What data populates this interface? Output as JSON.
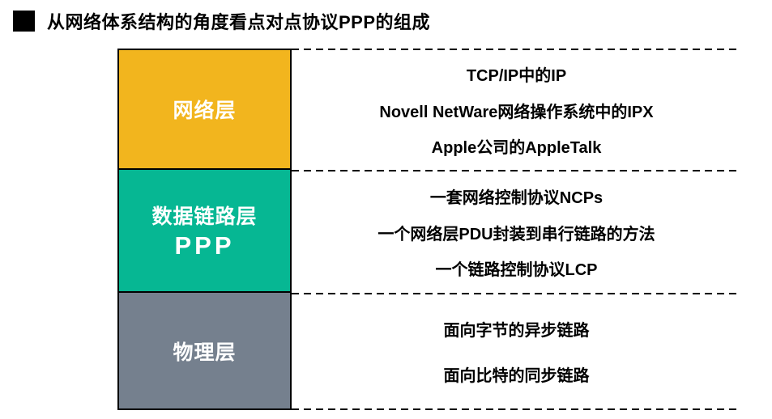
{
  "header": {
    "bullet_icon": "black-square",
    "title": "从网络体系结构的角度看点对点协议PPP的组成"
  },
  "colors": {
    "network_layer": "#F2B51E",
    "datalink_layer": "#06B793",
    "physical_layer": "#75808E",
    "text_on_layer": "#ffffff",
    "detail_text": "#000000",
    "dash_line": "#000000"
  },
  "diagram": {
    "layers": [
      {
        "name": "网络层",
        "items": [
          "TCP/IP中的IP",
          "Novell NetWare网络操作系统中的IPX",
          "Apple公司的AppleTalk"
        ]
      },
      {
        "name": "数据链路层",
        "protocol": "PPP",
        "items": [
          "一套网络控制协议NCPs",
          "一个网络层PDU封装到串行链路的方法",
          "一个链路控制协议LCP"
        ]
      },
      {
        "name": "物理层",
        "items": [
          "面向字节的异步链路",
          "面向比特的同步链路"
        ]
      }
    ]
  }
}
